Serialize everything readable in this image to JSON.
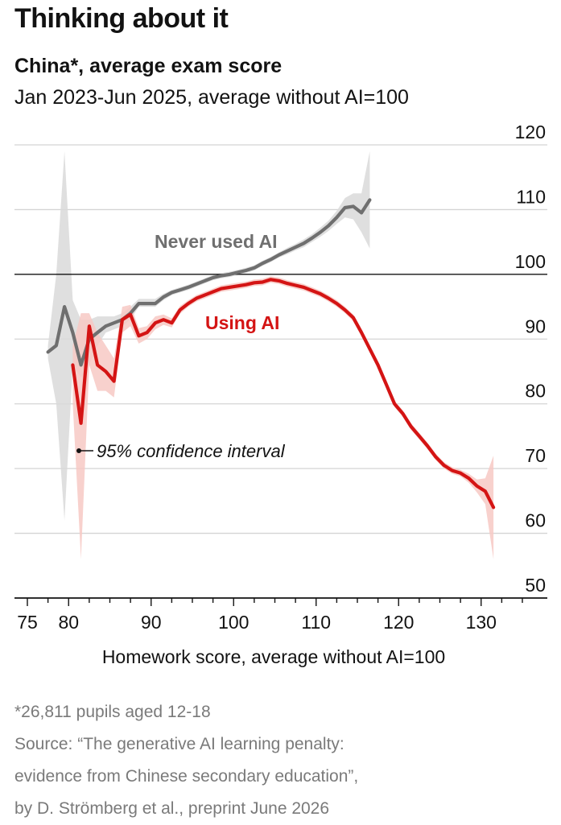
{
  "header": {
    "headline": "Thinking about it",
    "title": "China*, average exam score",
    "subtitle": "Jan 2023-Jun 2025, average without AI=100"
  },
  "footer": {
    "note": "*26,811 pupils aged 12-18",
    "source_line1": "Source: “The generative AI learning penalty:",
    "source_line2": "evidence from Chinese secondary education”,",
    "source_line3": "by D. Strömberg et al., preprint June 2026"
  },
  "colors": {
    "never_used": "#6f6f6f",
    "never_used_band": "#d9d9d9",
    "using": "#d41414",
    "using_band": "#f7c9c4",
    "grid": "#d4d4d4",
    "axis": "#121212"
  },
  "chart_data": {
    "type": "line",
    "title": "China*, average exam score",
    "subtitle": "Jan 2023-Jun 2025, average without AI=100",
    "xlabel": "Homework score, average without AI=100",
    "ylabel": "",
    "xlim": [
      74,
      140
    ],
    "ylim": [
      50,
      120
    ],
    "x_ticks": [
      75,
      80,
      90,
      100,
      110,
      120,
      130
    ],
    "y_ticks": [
      50,
      60,
      70,
      80,
      90,
      100,
      110,
      120
    ],
    "reference_line": 100,
    "grid": "horizontal",
    "y_axis_position": "right",
    "annotation": "95% confidence interval",
    "series": [
      {
        "name": "Never used AI",
        "x": [
          77.5,
          78.5,
          79.5,
          80.5,
          81.5,
          82.5,
          83.5,
          84.5,
          85.5,
          86.5,
          87.5,
          88.5,
          89.5,
          90.5,
          91.5,
          92.5,
          93.5,
          94.5,
          95.5,
          96.5,
          97.5,
          98.5,
          99.5,
          100.5,
          101.5,
          102.5,
          103.5,
          104.5,
          105.5,
          106.5,
          107.5,
          108.5,
          109.5,
          110.5,
          111.5,
          112.5,
          113.5,
          114.5,
          115.5,
          116.5
        ],
        "values": [
          88,
          89,
          95,
          91,
          86,
          90,
          91,
          92,
          92.5,
          93,
          94,
          95.5,
          95.5,
          95.5,
          96.5,
          97.2,
          97.6,
          98,
          98.5,
          99,
          99.5,
          99.8,
          100,
          100.3,
          100.6,
          101,
          101.7,
          102.3,
          103,
          103.6,
          104.2,
          104.8,
          105.6,
          106.5,
          107.5,
          108.8,
          110.3,
          110.5,
          109.5,
          111.5
        ],
        "ci_low": [
          87,
          80,
          62,
          86,
          84,
          86,
          89,
          91,
          91.5,
          92,
          93,
          95,
          95,
          95,
          96,
          96.8,
          97.2,
          97.6,
          98.1,
          98.6,
          99.1,
          99.4,
          99.6,
          99.9,
          100.2,
          100.6,
          101.3,
          101.9,
          102.6,
          103.1,
          103.7,
          104.2,
          105,
          105.8,
          106.7,
          107.8,
          108.8,
          108.5,
          106.5,
          104
        ],
        "ci_high": [
          89,
          100,
          119,
          96,
          93,
          93,
          93.5,
          93.5,
          93.5,
          94,
          95,
          96.2,
          96.2,
          96.2,
          97,
          97.6,
          98,
          98.4,
          98.9,
          99.4,
          99.9,
          100.2,
          100.4,
          100.7,
          101,
          101.4,
          102.1,
          102.7,
          103.4,
          104.1,
          104.7,
          105.4,
          106.2,
          107.2,
          108.3,
          109.8,
          111.8,
          112.5,
          112.5,
          119
        ]
      },
      {
        "name": "Using AI",
        "x": [
          80.5,
          81.5,
          82.5,
          83.5,
          84.5,
          85.5,
          86.5,
          87.5,
          88.5,
          89.5,
          90.5,
          91.5,
          92.5,
          93.5,
          94.5,
          95.5,
          96.5,
          97.5,
          98.5,
          99.5,
          100.5,
          101.5,
          102.5,
          103.5,
          104.5,
          105.5,
          106.5,
          107.5,
          108.5,
          109.5,
          110.5,
          111.5,
          112.5,
          113.5,
          114.5,
          115.5,
          116.5,
          117.5,
          118.5,
          119.5,
          120.5,
          121.5,
          122.5,
          123.5,
          124.5,
          125.5,
          126.5,
          127.5,
          128.5,
          129.5,
          130.5,
          131.5
        ],
        "values": [
          86,
          77,
          92,
          86,
          85,
          83.5,
          93,
          93.8,
          90.5,
          91,
          92.5,
          93,
          92.5,
          94.5,
          95.5,
          96.3,
          96.8,
          97.3,
          97.8,
          98,
          98.2,
          98.4,
          98.7,
          98.8,
          99.2,
          99,
          98.6,
          98.3,
          98,
          97.5,
          97,
          96.3,
          95.5,
          94.5,
          93.3,
          91,
          88.5,
          86,
          83,
          80,
          78.5,
          76.5,
          75,
          73.5,
          71.8,
          70.5,
          69.7,
          69.3,
          68.5,
          67.3,
          66.5,
          64
        ],
        "ci_low": [
          80,
          56,
          86,
          82,
          82,
          81,
          91,
          92,
          89.3,
          90,
          91.5,
          92.2,
          91.8,
          93.9,
          95,
          95.8,
          96.3,
          96.8,
          97.3,
          97.5,
          97.7,
          97.9,
          98.2,
          98.3,
          98.7,
          98.5,
          98.1,
          97.8,
          97.5,
          97,
          96.5,
          95.8,
          95,
          94,
          92.8,
          90.5,
          88,
          85.5,
          82.5,
          79.5,
          78,
          76,
          74.5,
          73,
          71.3,
          70,
          69.2,
          68.8,
          67.8,
          66.3,
          64.5,
          56
        ],
        "ci_high": [
          89,
          94,
          94,
          91,
          89,
          87,
          95,
          95.3,
          91.7,
          92,
          93.5,
          93.8,
          93.2,
          95.1,
          96,
          96.8,
          97.3,
          97.8,
          98.3,
          98.5,
          98.7,
          98.9,
          99.2,
          99.3,
          99.7,
          99.5,
          99.1,
          98.8,
          98.5,
          98,
          97.5,
          96.8,
          96,
          95,
          93.8,
          91.5,
          89,
          86.5,
          83.5,
          80.5,
          79,
          77,
          75.5,
          74,
          72.3,
          71,
          70.2,
          69.8,
          69.2,
          68.3,
          68.5,
          72
        ]
      }
    ],
    "labels": {
      "never_used": "Never used AI",
      "using": "Using AI"
    }
  }
}
